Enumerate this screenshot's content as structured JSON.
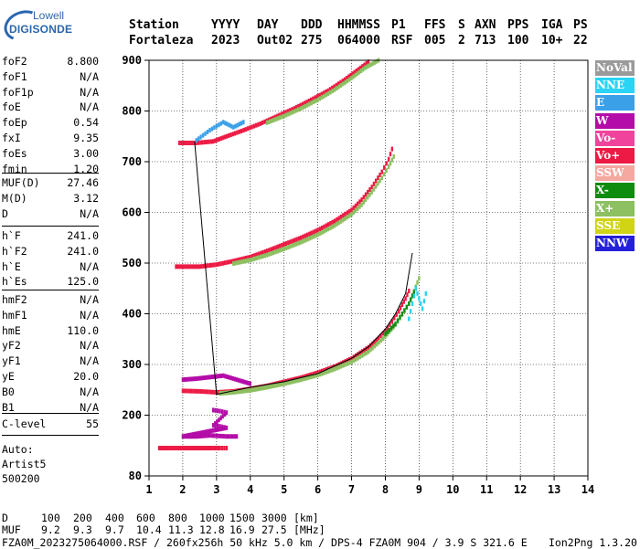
{
  "logo": {
    "line1": "Lowell",
    "line2": "DIGISONDE"
  },
  "header": {
    "labels": [
      "Station",
      "YYYY",
      "DAY",
      "DDD",
      "HHMMSS",
      "P1",
      "FFS",
      "S",
      "AXN",
      "PPS",
      "IGA",
      "PS"
    ],
    "values": [
      "Fortaleza",
      "2023",
      "Out02",
      "275",
      "064000",
      "RSF",
      "005",
      "2",
      "713",
      "100",
      "10+",
      "22"
    ]
  },
  "params_group1": [
    {
      "name": "foF2",
      "value": "8.800"
    },
    {
      "name": "foF1",
      "value": "N/A"
    },
    {
      "name": "foF1p",
      "value": "N/A"
    },
    {
      "name": "foE",
      "value": "N/A"
    },
    {
      "name": "foEp",
      "value": "0.54"
    },
    {
      "name": "fxI",
      "value": "9.35"
    },
    {
      "name": "foEs",
      "value": "3.00"
    },
    {
      "name": "fmin",
      "value": "1.20"
    }
  ],
  "params_group2": [
    {
      "name": "MUF(D)",
      "value": "27.46"
    },
    {
      "name": "M(D)",
      "value": "3.12"
    },
    {
      "name": "D",
      "value": "N/A"
    }
  ],
  "params_group3": [
    {
      "name": "h`F",
      "value": "241.0"
    },
    {
      "name": "h`F2",
      "value": "241.0"
    },
    {
      "name": "h`E",
      "value": "N/A"
    },
    {
      "name": "h`Es",
      "value": "125.0"
    }
  ],
  "params_group4": [
    {
      "name": "hmF2",
      "value": "N/A"
    },
    {
      "name": "hmF1",
      "value": "N/A"
    },
    {
      "name": "hmE",
      "value": "110.0"
    },
    {
      "name": "yF2",
      "value": "N/A"
    },
    {
      "name": "yF1",
      "value": "N/A"
    },
    {
      "name": "yE",
      "value": "20.0"
    },
    {
      "name": "B0",
      "value": "N/A"
    },
    {
      "name": "B1",
      "value": "N/A"
    }
  ],
  "params_group5": [
    {
      "name": "C-level",
      "value": "55"
    }
  ],
  "auto": {
    "line1": "Auto:",
    "line2": "Artist5",
    "line3": "500200"
  },
  "legend": [
    {
      "label": "NoVal",
      "color": "#9a9a9a"
    },
    {
      "label": "NNE",
      "color": "#2ad4f4"
    },
    {
      "label": "E",
      "color": "#3aa0e8"
    },
    {
      "label": "W",
      "color": "#b40ca8"
    },
    {
      "label": "Vo-",
      "color": "#f0449c"
    },
    {
      "label": "Vo+",
      "color": "#ec1a44"
    },
    {
      "label": "SSW",
      "color": "#f4a8a0"
    },
    {
      "label": "X-",
      "color": "#0e8c10"
    },
    {
      "label": "X+",
      "color": "#8cc060"
    },
    {
      "label": "SSE",
      "color": "#d0d414"
    },
    {
      "label": "NNW",
      "color": "#2420d8"
    }
  ],
  "footer": {
    "d_label": "D",
    "d_values": [
      "100",
      "200",
      "400",
      "600",
      "800",
      "1000",
      "1500",
      "3000",
      "[km]"
    ],
    "muf_label": "MUF",
    "muf_values": [
      "9.2",
      "9.3",
      "9.7",
      "10.4",
      "11.3",
      "12.8",
      "16.9",
      "27.5",
      "[MHz]"
    ],
    "info": "FZA0M_2023275064000.RSF / 260fx256h 50 kHz 5.0 km / DPS-4 FZA0M 904 / 3.9 S 321.6 E",
    "version": "Ion2Png 1.3.20"
  },
  "chart_data": {
    "type": "scatter",
    "title": "",
    "xlabel": "",
    "ylabel": "",
    "xlim": [
      1,
      14
    ],
    "ylim": [
      80,
      900
    ],
    "xticks": [
      "1",
      "2",
      "3",
      "4",
      "5",
      "6",
      "7",
      "8",
      "9",
      "10",
      "11",
      "12",
      "13",
      "14"
    ],
    "yticks": [
      "80",
      "200",
      "300",
      "400",
      "500",
      "600",
      "700",
      "800",
      "900"
    ],
    "profile_line": {
      "name": "",
      "points": [
        [
          2.35,
          740
        ],
        [
          3.0,
          241
        ],
        [
          4.0,
          255
        ],
        [
          5.0,
          266
        ],
        [
          6.0,
          282
        ],
        [
          7.0,
          312
        ],
        [
          7.5,
          335
        ],
        [
          8.0,
          370
        ],
        [
          8.3,
          400
        ],
        [
          8.6,
          440
        ],
        [
          8.8,
          520
        ]
      ]
    },
    "traces": [
      {
        "name": "Vo+",
        "points": [
          [
            2.0,
            248
          ],
          [
            2.5,
            247
          ],
          [
            3.0,
            245
          ],
          [
            3.5,
            247
          ],
          [
            4.0,
            252
          ],
          [
            4.5,
            258
          ],
          [
            5.0,
            266
          ],
          [
            5.5,
            274
          ],
          [
            6.0,
            284
          ],
          [
            6.5,
            296
          ],
          [
            7.0,
            312
          ],
          [
            7.5,
            334
          ],
          [
            7.8,
            352
          ],
          [
            8.0,
            366
          ],
          [
            8.2,
            385
          ],
          [
            8.4,
            405
          ],
          [
            8.5,
            418
          ],
          [
            8.6,
            430
          ],
          [
            8.7,
            445
          ]
        ]
      },
      {
        "name": "X+",
        "points": [
          [
            3.1,
            243
          ],
          [
            3.5,
            245
          ],
          [
            4.0,
            249
          ],
          [
            4.5,
            255
          ],
          [
            5.0,
            262
          ],
          [
            5.5,
            270
          ],
          [
            6.0,
            279
          ],
          [
            6.5,
            291
          ],
          [
            7.0,
            305
          ],
          [
            7.5,
            325
          ],
          [
            8.0,
            355
          ],
          [
            8.3,
            378
          ],
          [
            8.5,
            398
          ],
          [
            8.7,
            420
          ],
          [
            8.85,
            445
          ],
          [
            9.0,
            470
          ]
        ]
      },
      {
        "name": "X-",
        "points": [
          [
            8.0,
            360
          ],
          [
            8.3,
            380
          ],
          [
            8.5,
            400
          ],
          [
            8.7,
            420
          ],
          [
            8.8,
            435
          ],
          [
            8.9,
            450
          ]
        ]
      },
      {
        "name": "Vo+",
        "points": [
          [
            1.8,
            493
          ],
          [
            2.5,
            493
          ],
          [
            3.0,
            497
          ],
          [
            3.5,
            504
          ],
          [
            4.0,
            512
          ],
          [
            4.5,
            524
          ],
          [
            5.0,
            537
          ],
          [
            5.5,
            550
          ],
          [
            6.0,
            565
          ],
          [
            6.5,
            583
          ],
          [
            7.0,
            605
          ],
          [
            7.3,
            625
          ],
          [
            7.6,
            650
          ],
          [
            7.9,
            680
          ],
          [
            8.1,
            705
          ],
          [
            8.2,
            725
          ]
        ]
      },
      {
        "name": "X+",
        "points": [
          [
            3.5,
            499
          ],
          [
            4.0,
            506
          ],
          [
            4.5,
            516
          ],
          [
            5.0,
            528
          ],
          [
            5.5,
            541
          ],
          [
            6.0,
            556
          ],
          [
            6.5,
            574
          ],
          [
            7.0,
            596
          ],
          [
            7.3,
            615
          ],
          [
            7.6,
            640
          ],
          [
            7.9,
            668
          ],
          [
            8.1,
            690
          ],
          [
            8.25,
            710
          ]
        ]
      },
      {
        "name": "Vo+",
        "points": [
          [
            1.9,
            737
          ],
          [
            2.4,
            737
          ],
          [
            2.9,
            740
          ],
          [
            3.3,
            750
          ],
          [
            3.8,
            762
          ],
          [
            4.3,
            775
          ],
          [
            4.8,
            790
          ],
          [
            5.3,
            805
          ],
          [
            5.8,
            822
          ],
          [
            6.3,
            840
          ],
          [
            6.8,
            862
          ],
          [
            7.2,
            882
          ],
          [
            7.5,
            897
          ]
        ]
      },
      {
        "name": "X+",
        "points": [
          [
            4.5,
            777
          ],
          [
            5.0,
            790
          ],
          [
            5.5,
            805
          ],
          [
            6.0,
            822
          ],
          [
            6.5,
            842
          ],
          [
            7.0,
            865
          ],
          [
            7.4,
            885
          ],
          [
            7.8,
            900
          ]
        ]
      },
      {
        "name": "Vo+",
        "points": [
          [
            1.3,
            135
          ],
          [
            1.7,
            135
          ],
          [
            2.0,
            135
          ],
          [
            2.4,
            135
          ],
          [
            2.8,
            135
          ],
          [
            3.1,
            135
          ],
          [
            3.3,
            135
          ]
        ]
      },
      {
        "name": "W",
        "points": [
          [
            2.0,
            270
          ],
          [
            2.4,
            272
          ],
          [
            2.8,
            275
          ],
          [
            3.2,
            278
          ],
          [
            3.6,
            270
          ],
          [
            4.0,
            262
          ]
        ]
      },
      {
        "name": "NNE",
        "points": [
          [
            8.7,
            390
          ],
          [
            8.8,
            420
          ],
          [
            8.9,
            450
          ],
          [
            9.0,
            430
          ],
          [
            9.1,
            410
          ],
          [
            9.2,
            440
          ]
        ]
      },
      {
        "name": "E",
        "points": [
          [
            2.4,
            742
          ],
          [
            2.6,
            752
          ],
          [
            2.8,
            762
          ],
          [
            3.0,
            770
          ],
          [
            3.2,
            778
          ],
          [
            3.5,
            768
          ],
          [
            3.8,
            778
          ]
        ]
      },
      {
        "name": "W",
        "points": [
          [
            2.9,
            210
          ],
          [
            3.1,
            208
          ],
          [
            3.3,
            205
          ],
          [
            2.9,
            180
          ],
          [
            3.1,
            178
          ],
          [
            3.3,
            175
          ],
          [
            2.0,
            158
          ],
          [
            2.4,
            158
          ],
          [
            2.8,
            160
          ],
          [
            3.3,
            158
          ],
          [
            3.6,
            158
          ]
        ]
      }
    ]
  }
}
